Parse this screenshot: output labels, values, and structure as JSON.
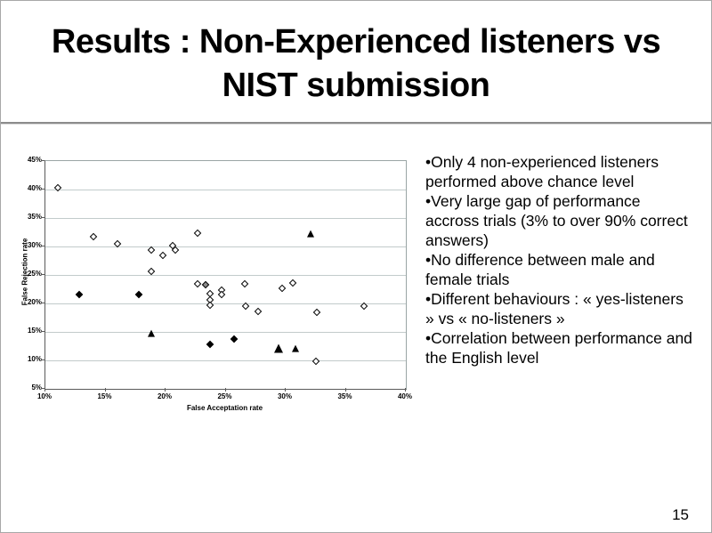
{
  "slide": {
    "title_line1": "Results :  Non-Experienced listeners vs",
    "title_line2": "NIST submission",
    "bullet_char": "•",
    "bullets": [
      "Only 4 non-experienced listeners performed above chance level",
      "Very large gap of performance accross trials (3% to over 90% correct answers)",
      "No difference between male and female trials",
      "Different behaviours : « yes-listeners » vs « no-listeners »",
      "Correlation between performance and  the English level"
    ],
    "page_number": "15"
  },
  "colors": {
    "grid": "#c2cbcb",
    "axis": "#5a5a5a",
    "plot_border": "#9aa5a5",
    "marker_outline": "#000000",
    "gray_marker": "#8a8a8a",
    "title_rule": "#8c8c8c"
  },
  "chart_data": {
    "type": "scatter",
    "title": "",
    "xlabel": "False Acceptation rate",
    "ylabel": "False Rejection rate",
    "xlim": [
      10,
      40
    ],
    "ylim": [
      5,
      45
    ],
    "grid": true,
    "legend": false,
    "x_ticks": [
      "10%",
      "15%",
      "20%",
      "25%",
      "30%",
      "35%",
      "40%"
    ],
    "y_ticks": [
      "5%",
      "10%",
      "15%",
      "20%",
      "25%",
      "30%",
      "35%",
      "40%",
      "45%"
    ],
    "series": [
      {
        "name": "open-diamond-listeners",
        "marker": "open-diamond",
        "points": [
          [
            11,
            40.3
          ],
          [
            14,
            31.7
          ],
          [
            16,
            30.4
          ],
          [
            18.8,
            29.3
          ],
          [
            19.8,
            28.5
          ],
          [
            20.6,
            30.2
          ],
          [
            20.8,
            29.3
          ],
          [
            22.7,
            32.4
          ],
          [
            18.8,
            25.7
          ],
          [
            22.7,
            23.5
          ],
          [
            23.7,
            21.7
          ],
          [
            23.7,
            20.7
          ],
          [
            23.7,
            19.7
          ],
          [
            24.7,
            22.4
          ],
          [
            24.7,
            21.6
          ],
          [
            26.6,
            23.5
          ],
          [
            26.7,
            19.6
          ],
          [
            27.7,
            18.6
          ],
          [
            29.7,
            22.6
          ],
          [
            30.6,
            23.6
          ],
          [
            32.6,
            18.5
          ],
          [
            36.5,
            19.5
          ],
          [
            32.5,
            9.8
          ]
        ]
      },
      {
        "name": "gray-diamond-listener",
        "marker": "gray-diamond",
        "points": [
          [
            23.3,
            23.3
          ]
        ]
      },
      {
        "name": "filled-diamond-listeners",
        "marker": "filled-diamond",
        "points": [
          [
            12.8,
            21.5
          ],
          [
            17.8,
            21.5
          ],
          [
            23.7,
            12.8
          ],
          [
            25.7,
            13.7
          ]
        ]
      },
      {
        "name": "filled-triangle-listeners",
        "marker": "triangle",
        "points": [
          [
            18.8,
            14.7
          ],
          [
            30.8,
            12.1
          ],
          [
            32.1,
            32.2
          ]
        ]
      },
      {
        "name": "filled-triangle-large-listener",
        "marker": "triangle-large",
        "points": [
          [
            29.4,
            12.1
          ]
        ]
      }
    ]
  }
}
